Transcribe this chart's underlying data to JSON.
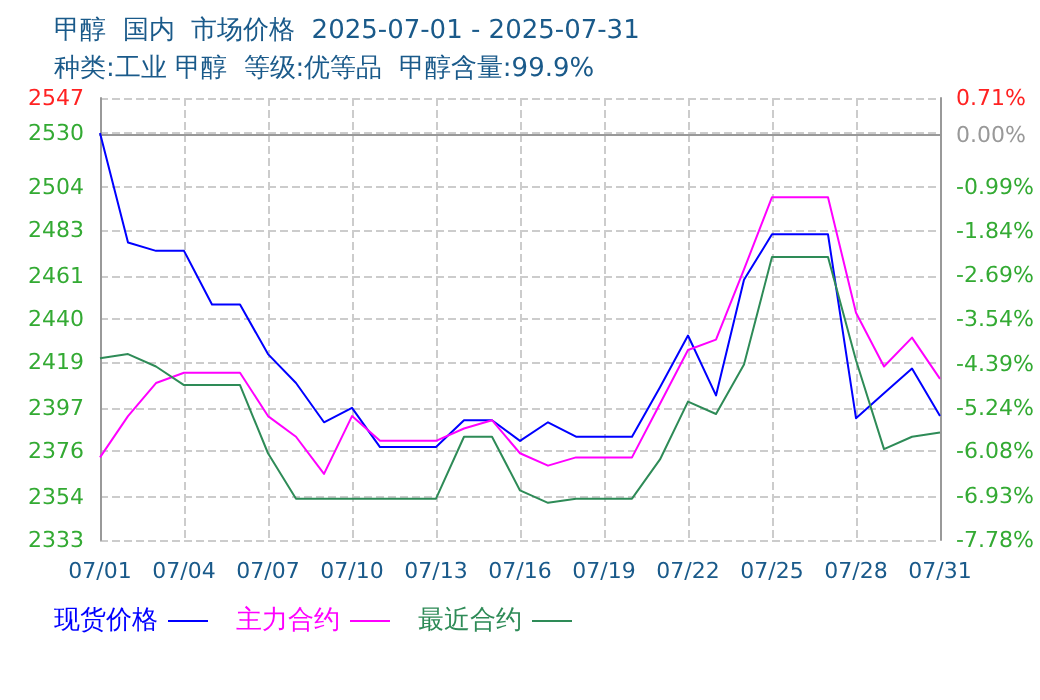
{
  "chart_data": {
    "type": "line",
    "title": "甲醇  国内  市场价格  2025-07-01 - 2025-07-31",
    "subtitle": "种类:工业 甲醇  等级:优等品  甲醇含量:99.9%",
    "categories": [
      "07/01",
      null,
      null,
      "07/04",
      null,
      null,
      "07/07",
      null,
      null,
      "07/10",
      null,
      null,
      "07/13",
      null,
      null,
      "07/16",
      null,
      null,
      "07/19",
      null,
      null,
      "07/22",
      null,
      null,
      "07/25",
      null,
      null,
      "07/28",
      null,
      null,
      "07/31"
    ],
    "series": [
      {
        "name": "现货价格",
        "color": "#0000ff",
        "values": [
          2530,
          2477,
          2473,
          2473,
          2447,
          2447,
          2423,
          2409,
          2390,
          2397,
          2378,
          2378,
          2378,
          2391,
          2391,
          2381,
          2390,
          2383,
          2383,
          2383,
          2407,
          2432,
          2403,
          2459,
          2481,
          2481,
          2481,
          2392,
          2404,
          2416,
          2393
        ]
      },
      {
        "name": "主力合约",
        "color": "#ff00ff",
        "values": [
          2373,
          2393,
          2409,
          2414,
          2414,
          2414,
          2393,
          2383,
          2365,
          2393,
          2381,
          2381,
          2381,
          2387,
          2391,
          2375,
          2369,
          2373,
          2373,
          2373,
          2399,
          2425,
          2430,
          2464,
          2499,
          2499,
          2499,
          2443,
          2417,
          2431,
          2411
        ]
      },
      {
        "name": "最近合约",
        "color": "#2e8b57",
        "values": [
          2421,
          2423,
          2417,
          2408,
          2408,
          2408,
          2375,
          2353,
          2353,
          2353,
          2353,
          2353,
          2353,
          2383,
          2383,
          2357,
          2351,
          2353,
          2353,
          2353,
          2372,
          2400,
          2394,
          2418,
          2470,
          2470,
          2470,
          2420,
          2377,
          2383,
          2385
        ]
      }
    ],
    "ylim": [
      2333,
      2547
    ],
    "yticks": [
      2333,
      2354,
      2376,
      2397,
      2419,
      2440,
      2461,
      2483,
      2504,
      2530,
      2547
    ],
    "y2lim": [
      -7.78,
      0.71
    ],
    "y2ticks": [
      {
        "value": -7.78,
        "label": "-7.78%"
      },
      {
        "value": -6.93,
        "label": "-6.93%"
      },
      {
        "value": -6.08,
        "label": "-6.08%"
      },
      {
        "value": -5.24,
        "label": "-5.24%"
      },
      {
        "value": -4.39,
        "label": "-4.39%"
      },
      {
        "value": -3.54,
        "label": "-3.54%"
      },
      {
        "value": -2.69,
        "label": "-2.69%"
      },
      {
        "value": -1.84,
        "label": "-1.84%"
      },
      {
        "value": -0.99,
        "label": "-0.99%"
      },
      {
        "value": 0,
        "label": "0.00%"
      },
      {
        "value": 0.71,
        "label": "0.71%"
      }
    ],
    "grid": true,
    "legend": "bottom left",
    "marker": "none"
  }
}
